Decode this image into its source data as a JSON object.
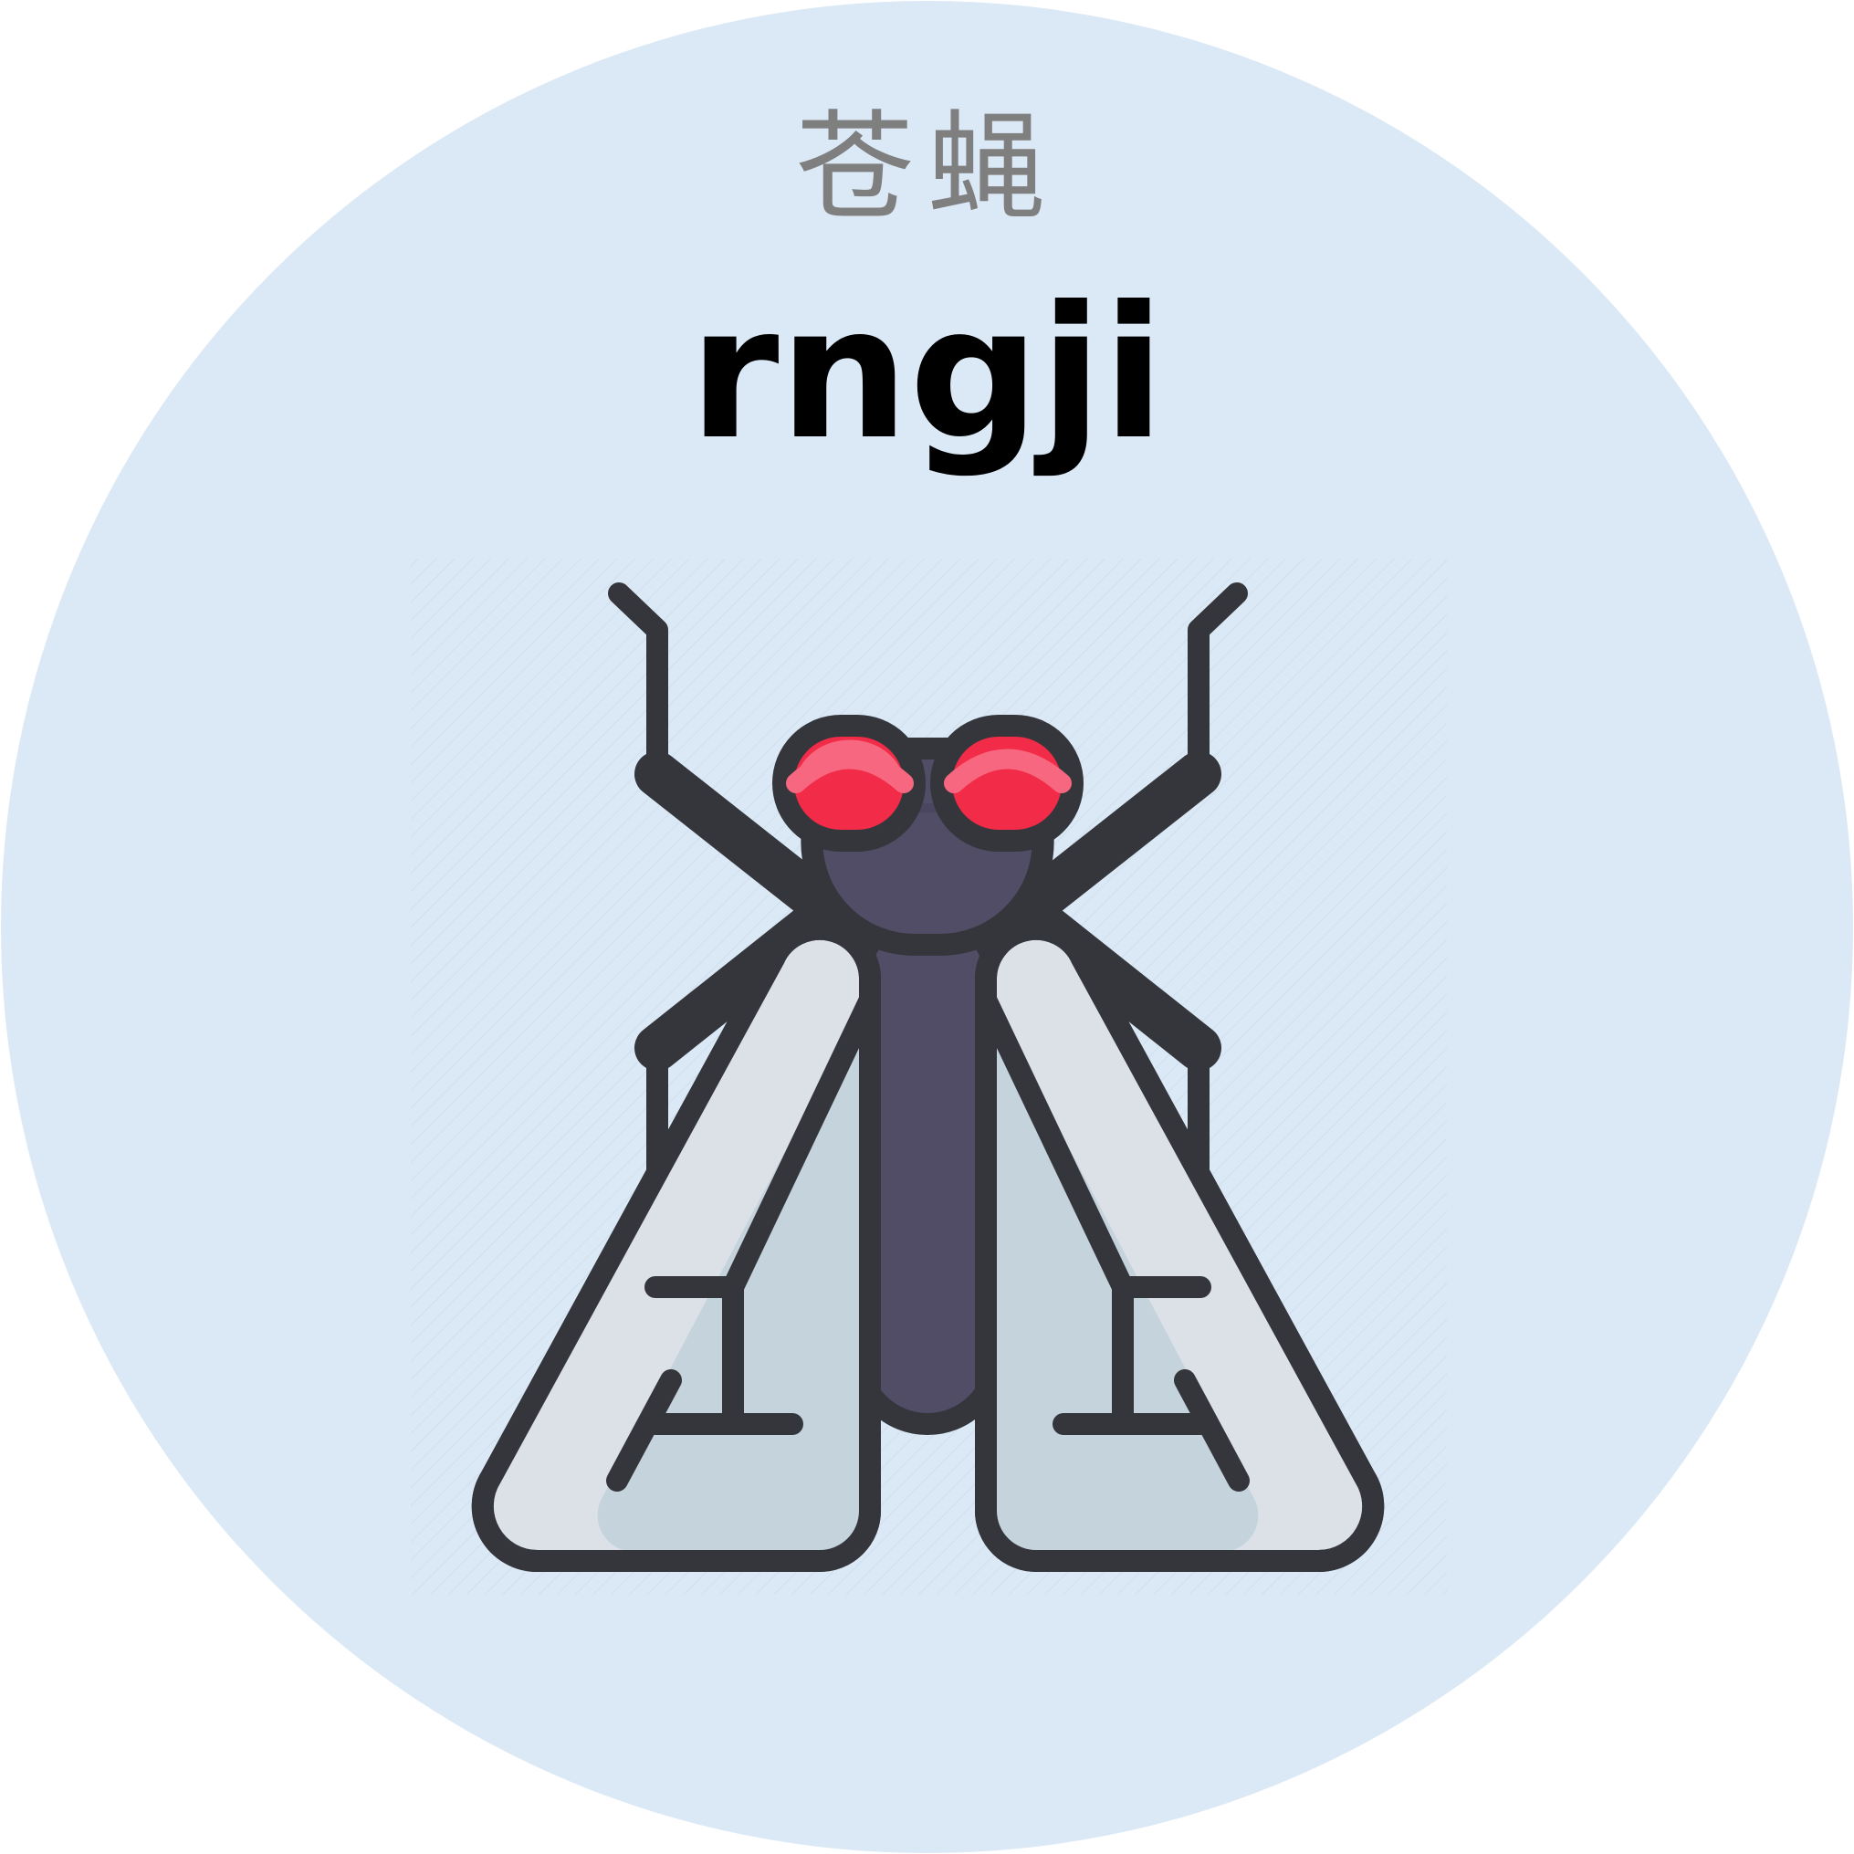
{
  "card": {
    "hanzi": "苍蝇",
    "pinyin": "rngji",
    "illustration_icon": "housefly-icon"
  },
  "colors": {
    "background": "#dbe9f6",
    "hanzi_text": "#7f7f7f",
    "pinyin_text": "#000000",
    "outline": "#34363b",
    "body": "#514d66",
    "eye": "#f12b48",
    "eye_highlight": "#f76780",
    "wing": "#dbe1e7",
    "wing_shade": "#c5d3dd"
  }
}
